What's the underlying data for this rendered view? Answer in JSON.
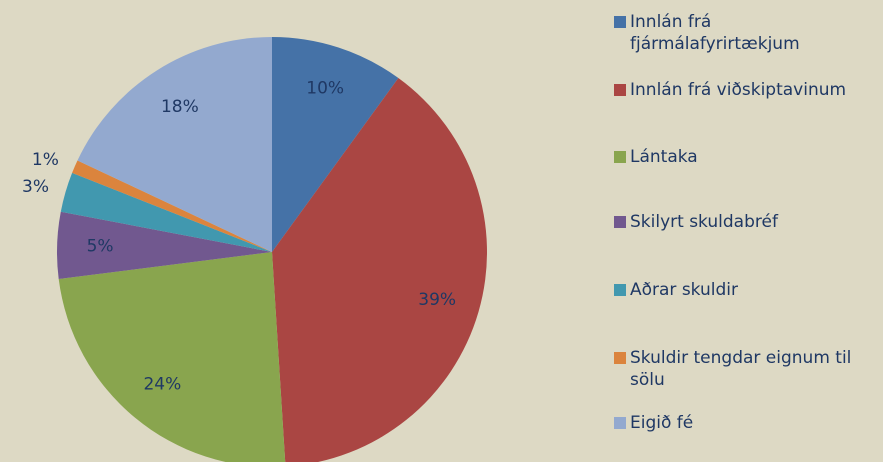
{
  "chart_data": {
    "type": "pie",
    "categories": [
      "Innlán frá fjármálafyrirtækjum",
      "Innlán frá viðskiptavinum",
      "Lántaka",
      "Skilyrt skuldabréf",
      "Aðrar skuldir",
      "Skuldir tengdar eignum til sölu",
      "Eigið fé"
    ],
    "values": [
      10,
      39,
      24,
      5,
      3,
      1,
      18
    ],
    "value_labels": [
      "10%",
      "39%",
      "24%",
      "5%",
      "3%",
      "1%",
      "18%"
    ],
    "colors": [
      "#4572a7",
      "#aa4643",
      "#89a54e",
      "#71588f",
      "#4198af",
      "#db843d",
      "#93a9cf"
    ],
    "legend": "right"
  }
}
